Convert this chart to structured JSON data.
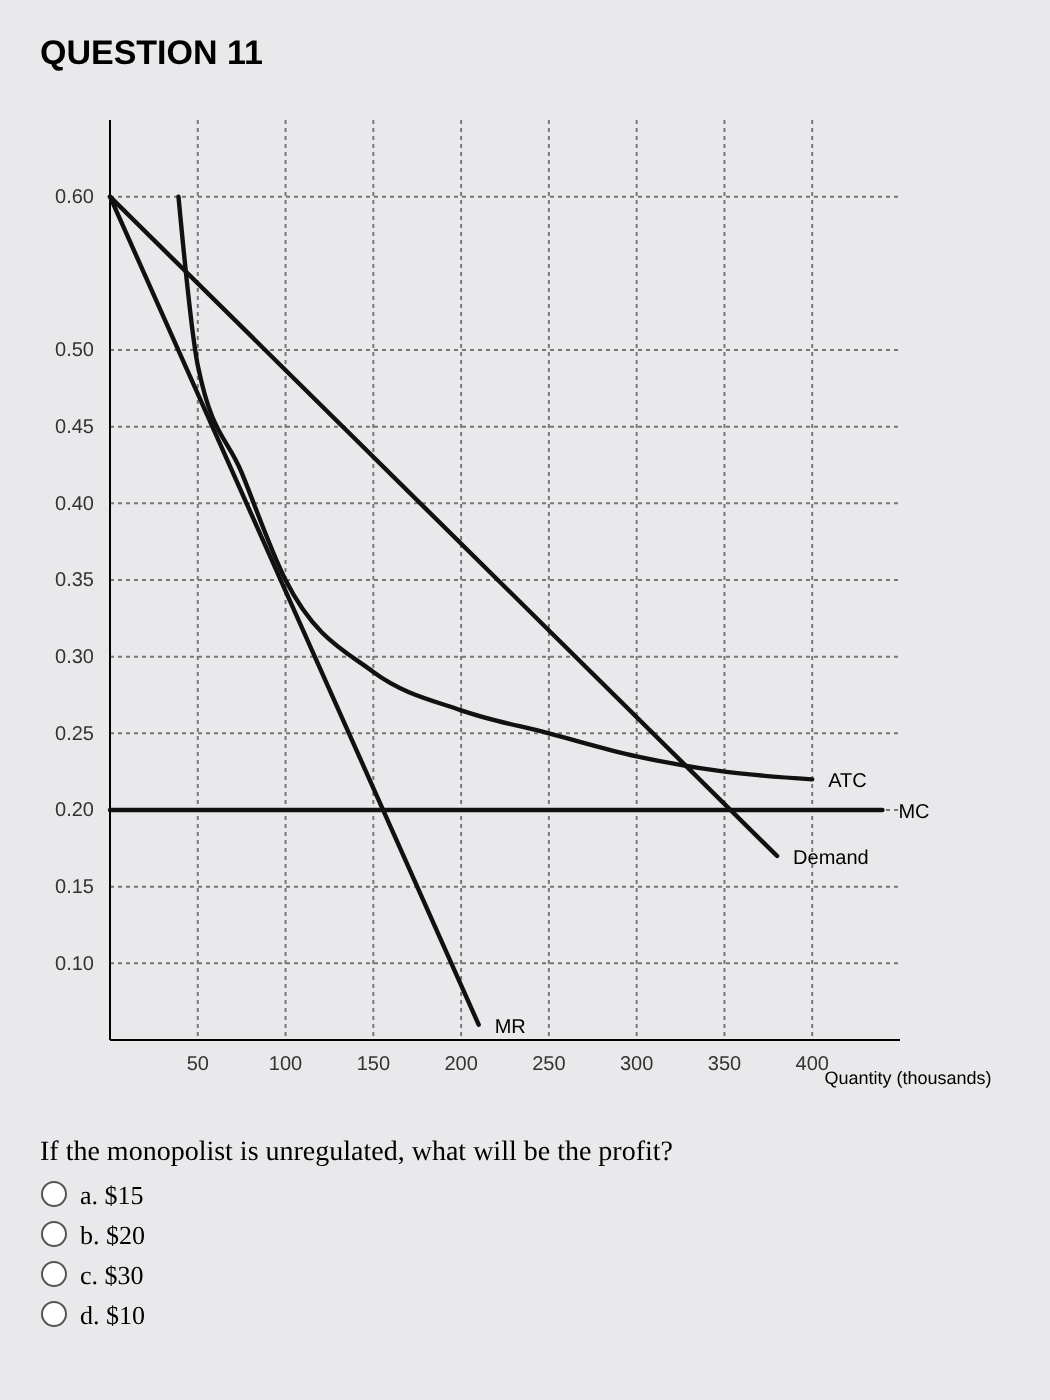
{
  "chart_data": {
    "type": "line",
    "title": "QUESTION 11",
    "xlabel": "Quantity (thousands)",
    "xlim": [
      0,
      450
    ],
    "xticks": [
      50,
      100,
      150,
      200,
      250,
      300,
      350,
      400
    ],
    "ylim": [
      0.05,
      0.65
    ],
    "yticks": [
      {
        "value": 0.1,
        "label": "0.10"
      },
      {
        "value": 0.15,
        "label": "0.15"
      },
      {
        "value": 0.2,
        "label": "0.20"
      },
      {
        "value": 0.25,
        "label": "0.25"
      },
      {
        "value": 0.3,
        "label": "0.30"
      },
      {
        "value": 0.35,
        "label": "0.35"
      },
      {
        "value": 0.4,
        "label": "0.40"
      },
      {
        "value": 0.45,
        "label": "0.45"
      },
      {
        "value": 0.5,
        "label": "0.50"
      },
      {
        "value": 0.6,
        "label": "0.60"
      }
    ],
    "grid": true,
    "line_style": "solid",
    "marker": "none",
    "series": [
      {
        "name": "MR",
        "color": "#111111",
        "x": [
          0,
          210
        ],
        "values": [
          0.6,
          0.06
        ]
      },
      {
        "name": "ATC",
        "color": "#111111",
        "x": [
          39,
          50,
          75,
          100,
          150,
          200,
          250,
          300,
          350,
          400
        ],
        "values": [
          0.6,
          0.49,
          0.42,
          0.35,
          0.29,
          0.265,
          0.25,
          0.235,
          0.225,
          0.22
        ]
      },
      {
        "name": "MC",
        "color": "#111111",
        "x": [
          0,
          440
        ],
        "values": [
          0.2,
          0.2
        ]
      },
      {
        "name": "Demand",
        "color": "#111111",
        "x": [
          0,
          380
        ],
        "values": [
          0.6,
          0.17
        ]
      }
    ],
    "annotations": [
      "If the monopolist is unregulated, what will be the profit?",
      "a. $15",
      "b. $20",
      "c. $30",
      "d. $10"
    ]
  }
}
